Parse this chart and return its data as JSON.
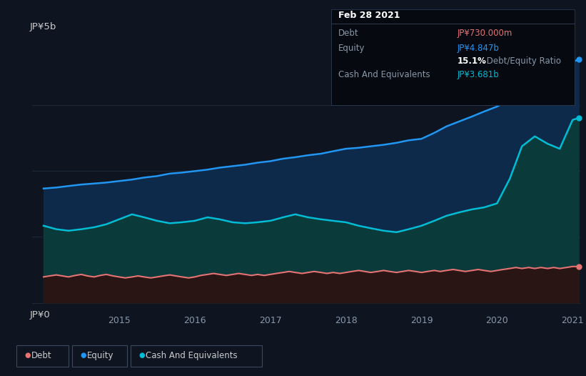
{
  "bg_color": "#0e1420",
  "plot_bg_color": "#0e1420",
  "grid_color": "#1e2a3a",
  "title_label": "JP¥5b",
  "zero_label": "JP¥0",
  "x_ticks": [
    2015,
    2016,
    2017,
    2018,
    2019,
    2020,
    2021
  ],
  "y_max": 5.3,
  "y_min": -0.15,
  "tooltip": {
    "date": "Feb 28 2021",
    "debt_label": "Debt",
    "debt_value": "JP¥730.000m",
    "equity_label": "Equity",
    "equity_value": "JP¥4.847b",
    "ratio_bold": "15.1%",
    "ratio_rest": " Debt/Equity Ratio",
    "cash_label": "Cash And Equivalents",
    "cash_value": "JP¥3.681b"
  },
  "equity_color": "#2196f3",
  "equity_fill": "#0d2a4a",
  "cash_color": "#00bcd4",
  "cash_fill": "#0a3a3a",
  "debt_color": "#e57373",
  "debt_fill": "#2a1515",
  "legend_items": [
    {
      "label": "Debt",
      "color": "#e57373"
    },
    {
      "label": "Equity",
      "color": "#2196f3"
    },
    {
      "label": "Cash And Equivalents",
      "color": "#00bcd4"
    }
  ],
  "equity_data": {
    "x": [
      2014.0,
      2014.17,
      2014.33,
      2014.5,
      2014.67,
      2014.83,
      2015.0,
      2015.17,
      2015.33,
      2015.5,
      2015.67,
      2015.83,
      2016.0,
      2016.17,
      2016.33,
      2016.5,
      2016.67,
      2016.83,
      2017.0,
      2017.17,
      2017.33,
      2017.5,
      2017.67,
      2017.83,
      2018.0,
      2018.17,
      2018.33,
      2018.5,
      2018.67,
      2018.83,
      2019.0,
      2019.17,
      2019.33,
      2019.5,
      2019.67,
      2019.83,
      2020.0,
      2020.17,
      2020.33,
      2020.5,
      2020.67,
      2020.83,
      2021.0,
      2021.08
    ],
    "y": [
      2.3,
      2.32,
      2.35,
      2.38,
      2.4,
      2.42,
      2.45,
      2.48,
      2.52,
      2.55,
      2.6,
      2.62,
      2.65,
      2.68,
      2.72,
      2.75,
      2.78,
      2.82,
      2.85,
      2.9,
      2.93,
      2.97,
      3.0,
      3.05,
      3.1,
      3.12,
      3.15,
      3.18,
      3.22,
      3.27,
      3.3,
      3.42,
      3.55,
      3.65,
      3.75,
      3.85,
      3.95,
      4.1,
      4.25,
      4.38,
      4.5,
      4.65,
      4.847,
      4.9
    ]
  },
  "cash_data": {
    "x": [
      2014.0,
      2014.17,
      2014.33,
      2014.5,
      2014.67,
      2014.83,
      2015.0,
      2015.17,
      2015.33,
      2015.5,
      2015.67,
      2015.83,
      2016.0,
      2016.17,
      2016.33,
      2016.5,
      2016.67,
      2016.83,
      2017.0,
      2017.17,
      2017.33,
      2017.5,
      2017.67,
      2017.83,
      2018.0,
      2018.17,
      2018.33,
      2018.5,
      2018.67,
      2018.83,
      2019.0,
      2019.17,
      2019.33,
      2019.5,
      2019.67,
      2019.83,
      2020.0,
      2020.17,
      2020.33,
      2020.5,
      2020.67,
      2020.83,
      2021.0,
      2021.08
    ],
    "y": [
      1.55,
      1.48,
      1.45,
      1.48,
      1.52,
      1.58,
      1.68,
      1.78,
      1.72,
      1.65,
      1.6,
      1.62,
      1.65,
      1.72,
      1.68,
      1.62,
      1.6,
      1.62,
      1.65,
      1.72,
      1.78,
      1.72,
      1.68,
      1.65,
      1.62,
      1.55,
      1.5,
      1.45,
      1.42,
      1.48,
      1.55,
      1.65,
      1.75,
      1.82,
      1.88,
      1.92,
      2.0,
      2.5,
      3.15,
      3.35,
      3.2,
      3.1,
      3.681,
      3.72
    ]
  },
  "debt_data": {
    "x": [
      2014.0,
      2014.08,
      2014.17,
      2014.25,
      2014.33,
      2014.42,
      2014.5,
      2014.58,
      2014.67,
      2014.75,
      2014.83,
      2014.92,
      2015.0,
      2015.08,
      2015.17,
      2015.25,
      2015.33,
      2015.42,
      2015.5,
      2015.58,
      2015.67,
      2015.75,
      2015.83,
      2015.92,
      2016.0,
      2016.08,
      2016.17,
      2016.25,
      2016.33,
      2016.42,
      2016.5,
      2016.58,
      2016.67,
      2016.75,
      2016.83,
      2016.92,
      2017.0,
      2017.08,
      2017.17,
      2017.25,
      2017.33,
      2017.42,
      2017.5,
      2017.58,
      2017.67,
      2017.75,
      2017.83,
      2017.92,
      2018.0,
      2018.08,
      2018.17,
      2018.25,
      2018.33,
      2018.42,
      2018.5,
      2018.58,
      2018.67,
      2018.75,
      2018.83,
      2018.92,
      2019.0,
      2019.08,
      2019.17,
      2019.25,
      2019.33,
      2019.42,
      2019.5,
      2019.58,
      2019.67,
      2019.75,
      2019.83,
      2019.92,
      2020.0,
      2020.08,
      2020.17,
      2020.25,
      2020.33,
      2020.42,
      2020.5,
      2020.58,
      2020.67,
      2020.75,
      2020.83,
      2020.92,
      2021.0,
      2021.08
    ],
    "y": [
      0.52,
      0.54,
      0.56,
      0.54,
      0.52,
      0.55,
      0.57,
      0.54,
      0.52,
      0.55,
      0.57,
      0.54,
      0.52,
      0.5,
      0.52,
      0.54,
      0.52,
      0.5,
      0.52,
      0.54,
      0.56,
      0.54,
      0.52,
      0.5,
      0.52,
      0.55,
      0.57,
      0.59,
      0.57,
      0.55,
      0.57,
      0.59,
      0.57,
      0.55,
      0.57,
      0.55,
      0.57,
      0.59,
      0.61,
      0.63,
      0.61,
      0.59,
      0.61,
      0.63,
      0.61,
      0.59,
      0.61,
      0.59,
      0.61,
      0.63,
      0.65,
      0.63,
      0.61,
      0.63,
      0.65,
      0.63,
      0.61,
      0.63,
      0.65,
      0.63,
      0.61,
      0.63,
      0.65,
      0.63,
      0.65,
      0.67,
      0.65,
      0.63,
      0.65,
      0.67,
      0.65,
      0.63,
      0.65,
      0.67,
      0.69,
      0.71,
      0.69,
      0.71,
      0.69,
      0.71,
      0.69,
      0.71,
      0.69,
      0.71,
      0.73,
      0.73
    ]
  }
}
